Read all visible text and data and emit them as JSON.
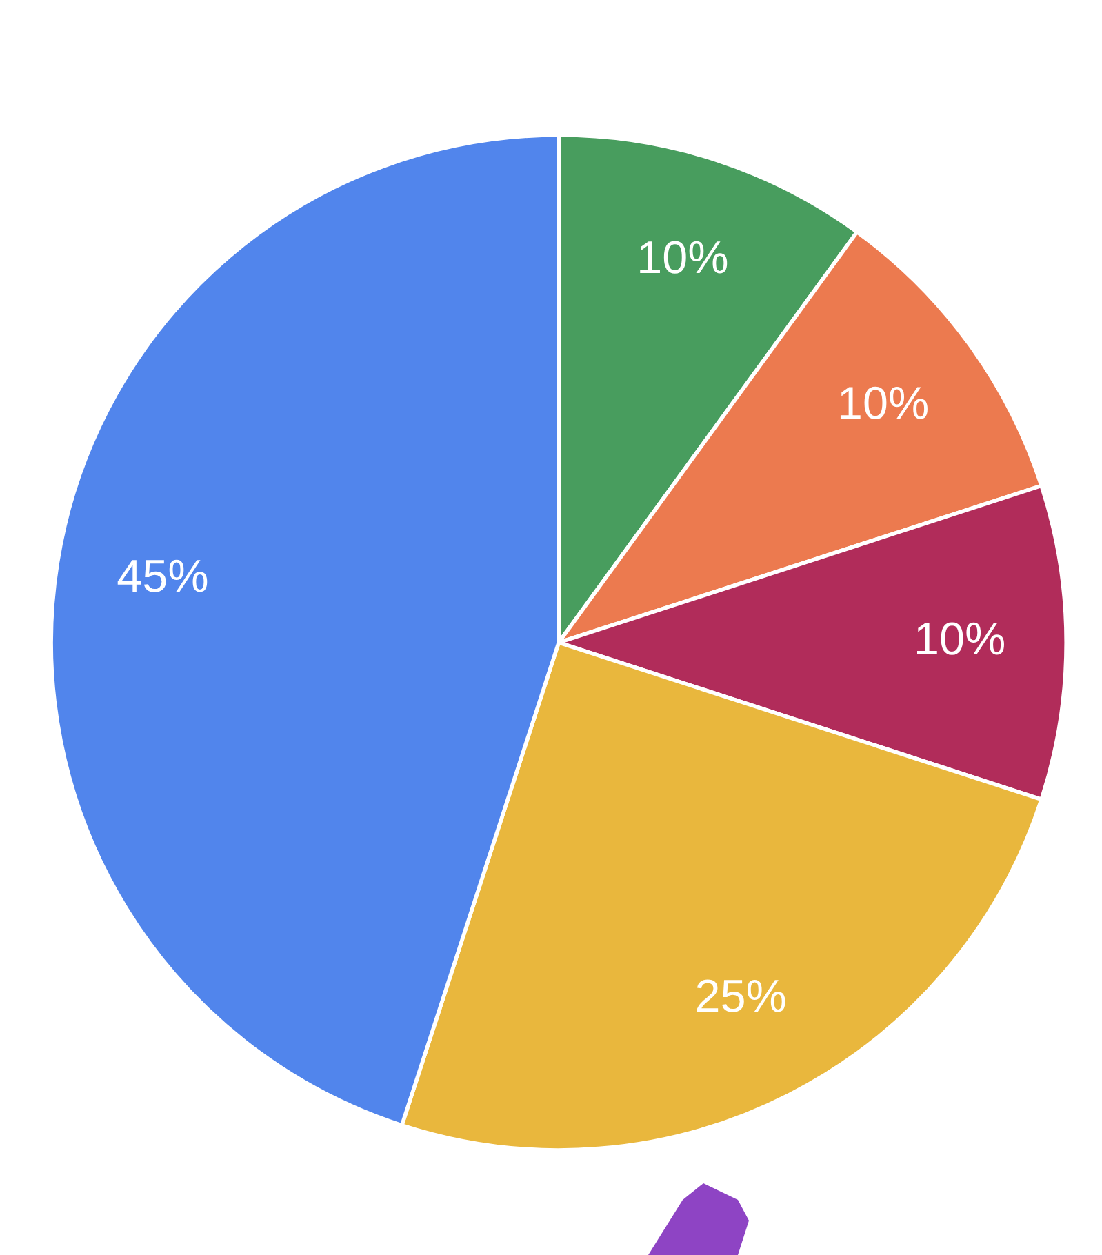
{
  "chart_data": {
    "type": "pie",
    "categories": [
      null,
      null,
      null,
      null,
      null
    ],
    "values": [
      10,
      10,
      10,
      25,
      45
    ],
    "colors": [
      "#489d5e",
      "#ec7a4f",
      "#b12c5a",
      "#e9b73d",
      "#5185ec"
    ],
    "value_labels": [
      "10%",
      "10%",
      "10%",
      "25%",
      "45%"
    ],
    "legend": false
  }
}
